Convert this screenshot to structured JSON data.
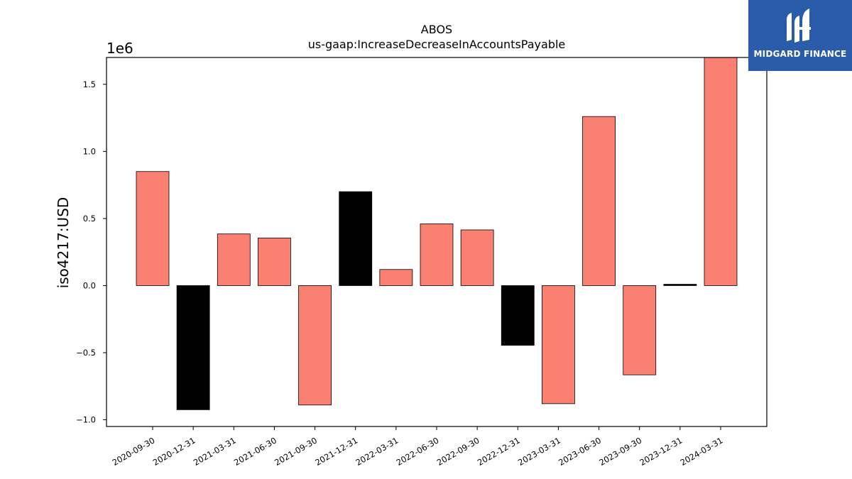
{
  "logo": {
    "text": "MIDGARD FINANCE"
  },
  "colors": {
    "positive": "#fa8072",
    "highlight": "#000000",
    "logo_bg": "#2a5caa"
  },
  "chart_data": {
    "type": "bar",
    "title": "ABOS",
    "subtitle": "us-gaap:IncreaseDecreaseInAccountsPayable",
    "xlabel": "",
    "ylabel": "iso4217:USD",
    "y_multiplier_label": "1e6",
    "categories": [
      "2020-09-30",
      "2020-12-31",
      "2021-03-31",
      "2021-06-30",
      "2021-09-30",
      "2021-12-31",
      "2022-03-31",
      "2022-06-30",
      "2022-09-30",
      "2022-12-31",
      "2023-03-31",
      "2023-06-30",
      "2023-09-30",
      "2023-12-31",
      "2024-03-31"
    ],
    "values": [
      0.85,
      -0.925,
      0.385,
      0.355,
      -0.89,
      0.7,
      0.12,
      0.46,
      0.415,
      -0.445,
      -0.88,
      1.26,
      -0.665,
      0.01,
      1.7
    ],
    "bar_colors": [
      "#fa8072",
      "#000000",
      "#fa8072",
      "#fa8072",
      "#fa8072",
      "#000000",
      "#fa8072",
      "#fa8072",
      "#fa8072",
      "#000000",
      "#fa8072",
      "#fa8072",
      "#fa8072",
      "#000000",
      "#fa8072"
    ],
    "y_ticks": [
      -1.0,
      -0.5,
      0.0,
      0.5,
      1.0,
      1.5
    ],
    "y_tick_labels": [
      "−1.0",
      "−0.5",
      "0.0",
      "0.5",
      "1.0",
      "1.5"
    ],
    "ylim": [
      -1.05,
      1.7
    ],
    "grid": false,
    "legend": "none"
  }
}
